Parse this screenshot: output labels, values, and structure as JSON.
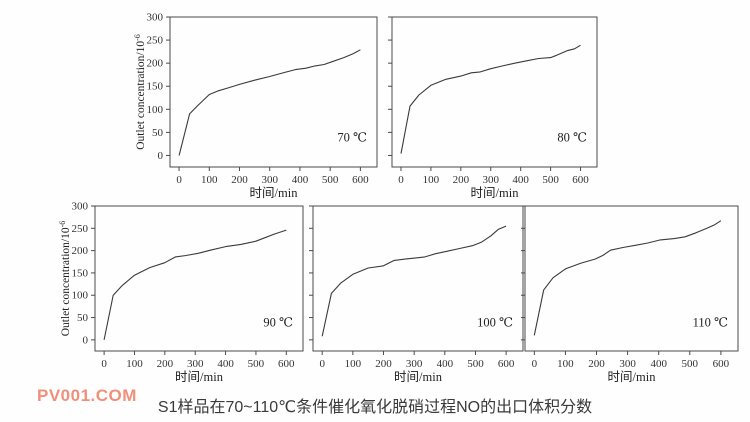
{
  "watermark": {
    "text": "PV001.COM",
    "color": "#f0907b"
  },
  "caption": "S1样品在70~110℃条件催化氧化脱硝过程NO的出口体积分数",
  "colors": {
    "line": "#3a3a3a",
    "axis": "#4a4a4a",
    "text": "#333333"
  },
  "chart_data": [
    {
      "type": "line",
      "label": "70 ℃",
      "xlabel": "时间/min",
      "ylabel": "Outlet concentration/10",
      "ylabel_sup": "-6",
      "show_y_labels": true,
      "xlim": [
        -30,
        655
      ],
      "ylim": [
        -25,
        300
      ],
      "xticks": [
        0,
        100,
        200,
        300,
        400,
        500,
        600
      ],
      "yticks": [
        0,
        50,
        100,
        150,
        200,
        250,
        300
      ],
      "x": [
        0,
        35,
        60,
        100,
        130,
        160,
        200,
        250,
        300,
        350,
        385,
        420,
        450,
        480,
        510,
        545,
        575,
        600
      ],
      "y": [
        0,
        90,
        107,
        132,
        140,
        146,
        154,
        163,
        171,
        180,
        186,
        189,
        194,
        197,
        204,
        212,
        220,
        229
      ]
    },
    {
      "type": "line",
      "label": "80 ℃",
      "xlabel": "时间/min",
      "ylabel": "",
      "ylabel_sup": "",
      "show_y_labels": false,
      "xlim": [
        -30,
        655
      ],
      "ylim": [
        -25,
        300
      ],
      "xticks": [
        0,
        100,
        200,
        300,
        400,
        500,
        600
      ],
      "yticks": [
        0,
        50,
        100,
        150,
        200,
        250,
        300
      ],
      "x": [
        0,
        30,
        60,
        100,
        150,
        200,
        235,
        265,
        300,
        340,
        380,
        420,
        460,
        500,
        520,
        555,
        580,
        600
      ],
      "y": [
        4,
        107,
        131,
        152,
        165,
        172,
        179,
        181,
        188,
        194,
        200,
        205,
        210,
        212,
        217,
        227,
        231,
        239
      ]
    },
    {
      "type": "line",
      "label": "90 ℃",
      "xlabel": "时间/min",
      "ylabel": "Outlet concentration/10",
      "ylabel_sup": "-6",
      "show_y_labels": true,
      "xlim": [
        -30,
        655
      ],
      "ylim": [
        -25,
        300
      ],
      "xticks": [
        0,
        100,
        200,
        300,
        400,
        500,
        600
      ],
      "yticks": [
        0,
        50,
        100,
        150,
        200,
        250,
        300
      ],
      "x": [
        0,
        30,
        60,
        100,
        150,
        200,
        235,
        270,
        310,
        350,
        400,
        450,
        500,
        530,
        560,
        600
      ],
      "y": [
        0,
        100,
        122,
        145,
        162,
        173,
        186,
        189,
        194,
        201,
        209,
        214,
        221,
        229,
        237,
        246
      ]
    },
    {
      "type": "line",
      "label": "100 ℃",
      "xlabel": "时间/min",
      "ylabel": "",
      "ylabel_sup": "",
      "show_y_labels": false,
      "xlim": [
        -30,
        655
      ],
      "ylim": [
        -25,
        300
      ],
      "xticks": [
        0,
        100,
        200,
        300,
        400,
        500,
        600
      ],
      "yticks": [
        0,
        50,
        100,
        150,
        200,
        250,
        300
      ],
      "x": [
        0,
        30,
        60,
        100,
        150,
        200,
        235,
        270,
        310,
        335,
        370,
        410,
        450,
        490,
        520,
        550,
        575,
        600
      ],
      "y": [
        8,
        104,
        127,
        147,
        161,
        166,
        178,
        181,
        184,
        186,
        193,
        199,
        205,
        211,
        219,
        233,
        248,
        255
      ]
    },
    {
      "type": "line",
      "label": "110 ℃",
      "xlabel": "时间/min",
      "ylabel": "",
      "ylabel_sup": "",
      "show_y_labels": false,
      "xlim": [
        -30,
        655
      ],
      "ylim": [
        -25,
        300
      ],
      "xticks": [
        0,
        100,
        200,
        300,
        400,
        500,
        600
      ],
      "yticks": [
        0,
        50,
        100,
        150,
        200,
        250,
        300
      ],
      "x": [
        0,
        30,
        60,
        100,
        150,
        195,
        220,
        245,
        285,
        325,
        365,
        405,
        450,
        485,
        520,
        555,
        580,
        600
      ],
      "y": [
        10,
        112,
        139,
        159,
        172,
        181,
        189,
        201,
        207,
        212,
        217,
        224,
        227,
        231,
        240,
        250,
        258,
        267
      ]
    }
  ]
}
